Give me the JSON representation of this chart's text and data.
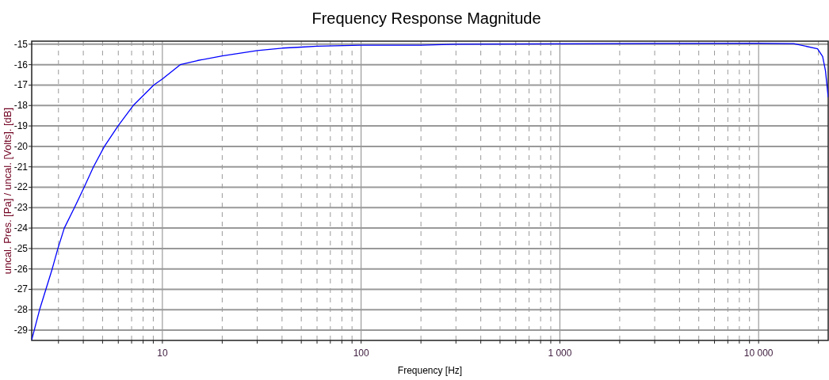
{
  "chart_data": {
    "type": "line",
    "title": "Frequency Response Magnitude",
    "xlabel": "Frequency [Hz]",
    "ylabel": "uncal. Pres. [Pa] / uncal. [Volts]. [dB]",
    "log": "x",
    "grid": true,
    "marker": "none",
    "line_style": "solid",
    "xlim": [
      2.2,
      22400
    ],
    "ylim": [
      -29.5,
      -14.85
    ],
    "xticks": [
      {
        "value": 3,
        "label": null
      },
      {
        "value": 4,
        "label": null
      },
      {
        "value": 5,
        "label": null
      },
      {
        "value": 6,
        "label": null
      },
      {
        "value": 7,
        "label": null
      },
      {
        "value": 8,
        "label": null
      },
      {
        "value": 9,
        "label": null
      },
      10,
      {
        "value": 20,
        "label": null
      },
      {
        "value": 30,
        "label": null
      },
      {
        "value": 40,
        "label": null
      },
      {
        "value": 50,
        "label": null
      },
      {
        "value": 60,
        "label": null
      },
      {
        "value": 70,
        "label": null
      },
      {
        "value": 80,
        "label": null
      },
      {
        "value": 90,
        "label": null
      },
      100,
      {
        "value": 200,
        "label": null
      },
      {
        "value": 300,
        "label": null
      },
      {
        "value": 400,
        "label": null
      },
      {
        "value": 500,
        "label": null
      },
      {
        "value": 600,
        "label": null
      },
      {
        "value": 700,
        "label": null
      },
      {
        "value": 800,
        "label": null
      },
      {
        "value": 900,
        "label": null
      },
      {
        "value": 1000,
        "label": "1 000"
      },
      {
        "value": 2000,
        "label": null
      },
      {
        "value": 3000,
        "label": null
      },
      {
        "value": 4000,
        "label": null
      },
      {
        "value": 5000,
        "label": null
      },
      {
        "value": 6000,
        "label": null
      },
      {
        "value": 7000,
        "label": null
      },
      {
        "value": 8000,
        "label": null
      },
      {
        "value": 9000,
        "label": null
      },
      {
        "value": 10000,
        "label": "10 000"
      },
      {
        "value": 20000,
        "label": null
      }
    ],
    "yticks": [
      -29,
      -28,
      -27,
      -26,
      -25,
      -24,
      -23,
      -22,
      -21,
      -20,
      -19,
      -18,
      -17,
      -16,
      -15
    ],
    "series": [
      {
        "color": "#0000ff",
        "x": [
          2.2,
          2.41,
          2.79,
          2.98,
          3.21,
          3.61,
          4.04,
          4.5,
          5.11,
          5.98,
          7.13,
          9.04,
          10,
          12.3,
          15,
          20,
          30,
          40,
          50,
          60,
          100,
          200,
          300,
          1000,
          3000,
          10000,
          15000,
          19800,
          21000,
          21700,
          22400
        ],
        "values": [
          -29.47,
          -28,
          -26,
          -25,
          -24,
          -23,
          -22,
          -21,
          -20,
          -19,
          -18,
          -17,
          -16.7,
          -16,
          -15.8,
          -15.57,
          -15.31,
          -15.19,
          -15.14,
          -15.1,
          -15.05,
          -15.05,
          -15,
          -14.98,
          -14.96,
          -14.95,
          -14.97,
          -15.22,
          -15.6,
          -16.3,
          -17.6
        ]
      }
    ]
  }
}
